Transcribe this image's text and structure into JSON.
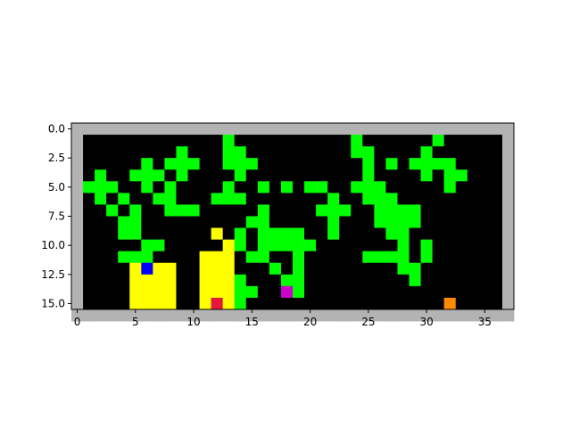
{
  "chart_data": {
    "type": "heatmap",
    "title": "",
    "xlabel": "",
    "ylabel": "",
    "xlim": [
      -0.5,
      37.5
    ],
    "ylim": [
      15.5,
      -0.5
    ],
    "x_ticks": [
      0,
      5,
      10,
      15,
      20,
      25,
      30,
      35
    ],
    "x_tick_labels": [
      "0",
      "5",
      "10",
      "15",
      "20",
      "25",
      "30",
      "35"
    ],
    "y_ticks": [
      0.0,
      2.5,
      5.0,
      7.5,
      10.0,
      12.5,
      15.0
    ],
    "y_tick_labels": [
      "0.0",
      "2.5",
      "5.0",
      "7.5",
      "10.0",
      "12.5",
      "15.0"
    ],
    "grid": false,
    "legend": "none",
    "palette": {
      "W": "#b3b3b3",
      ".": "#000000",
      "G": "#00ff00",
      "Y": "#ffff00",
      "B": "#0000ff",
      "N": "#004c99",
      "M": "#cc00cc",
      "R": "#e6193c",
      "O": "#ff8c00"
    },
    "grid_rows": [
      "WWWWWWWWWWWWWWWWWWWWWWWWWWWWWWWWWWWWWW",
      "W............G..........G......G.....W",
      "W........G...GG.........GG....G......W",
      "W.....G.GGG..GGG.........G.G.GGGG....W",
      "W.G..GGG.G....G..........G....G.GG...W",
      "WGGG..G.G....G..G.G.GG..GGG.....G....W",
      "W.G.G..GG...GGG.......G..GGG.........W",
      "W..G.G..GGG.....G....GGG..GGGG.......W",
      "W...GG.........GG.....G...GGGG.......W",
      "W...GG......Y.G.GGGG..G....GG........W",
      "W.....GG.....YG.GGGGG.......G.G......W",
      "W...GGG....YYY.GG..G.....GGGG.G......W",
      "W....YBYY..YYY...G.G........GG.......W",
      "W....YYYY..YYYG...GG.........G.......W",
      "W....YYYY..YYYGG..MG.................W",
      "W....YYYY..YRYG.................O....W",
      "WWWWWWWWWWWWWWWWWWWWWWWWWWWWWWWWWWWWWW"
    ]
  }
}
